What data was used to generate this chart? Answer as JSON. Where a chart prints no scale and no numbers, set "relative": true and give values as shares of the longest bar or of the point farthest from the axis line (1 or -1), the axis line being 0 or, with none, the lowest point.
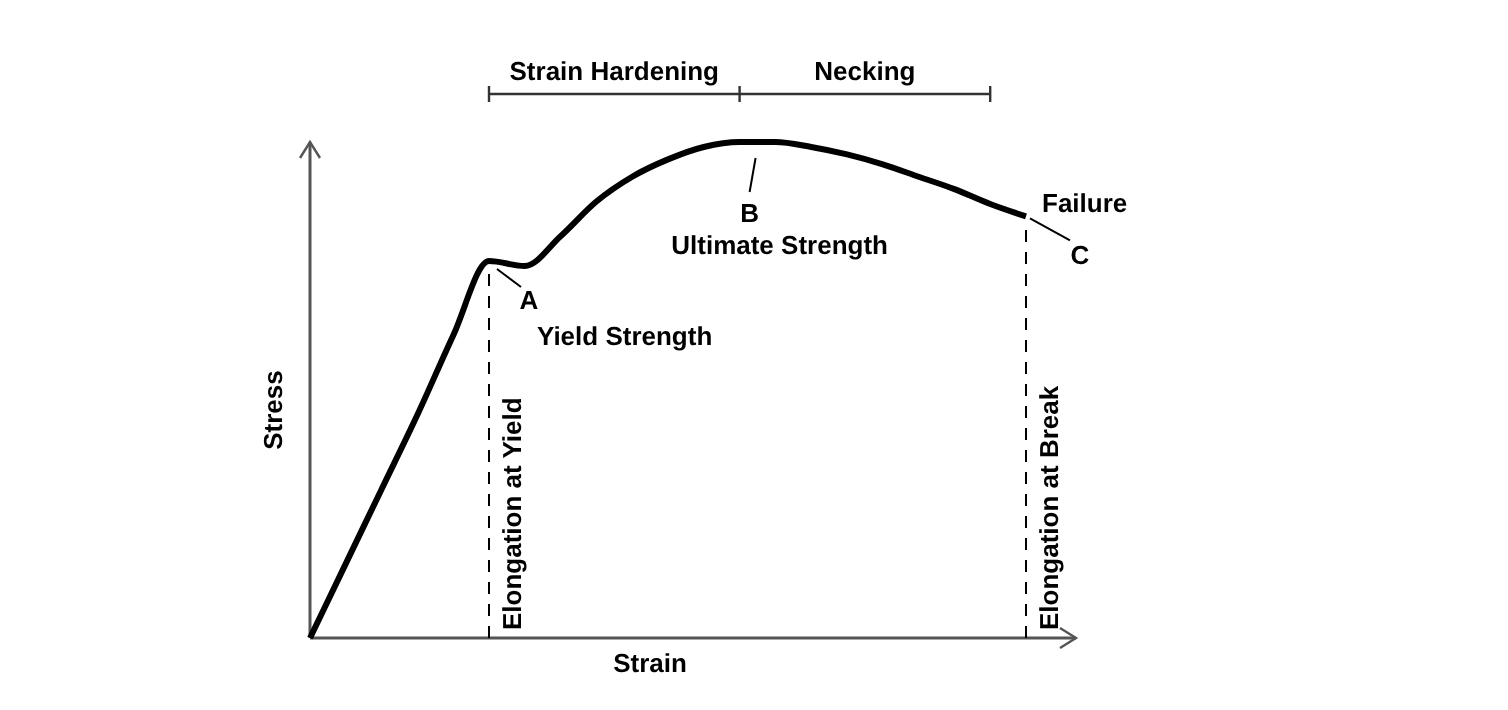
{
  "chart_data": {
    "type": "line",
    "relative": true,
    "xlabel": "Strain",
    "ylabel": "Stress",
    "categories": [
      null,
      null,
      null,
      null,
      null,
      null,
      null,
      null,
      null,
      null,
      null,
      null,
      null,
      null,
      null,
      null,
      null,
      null,
      null,
      null,
      null
    ],
    "series": [
      {
        "color": "#000000",
        "values": [
          0,
          0.15,
          0.3,
          0.45,
          0.61,
          0.76,
          0.75,
          0.81,
          0.88,
          0.93,
          0.965,
          0.99,
          1.0,
          1.0,
          0.99,
          0.975,
          0.955,
          0.93,
          0.905,
          0.875,
          0.85
        ]
      }
    ],
    "annotations": [
      "Strain Hardening",
      "Necking",
      "A",
      "Yield Strength",
      "B",
      "Ultimate Strength",
      "Failure",
      "C",
      "Elongation at Yield",
      "Elongation at Break"
    ],
    "line_style": "solid",
    "marker": "none"
  }
}
